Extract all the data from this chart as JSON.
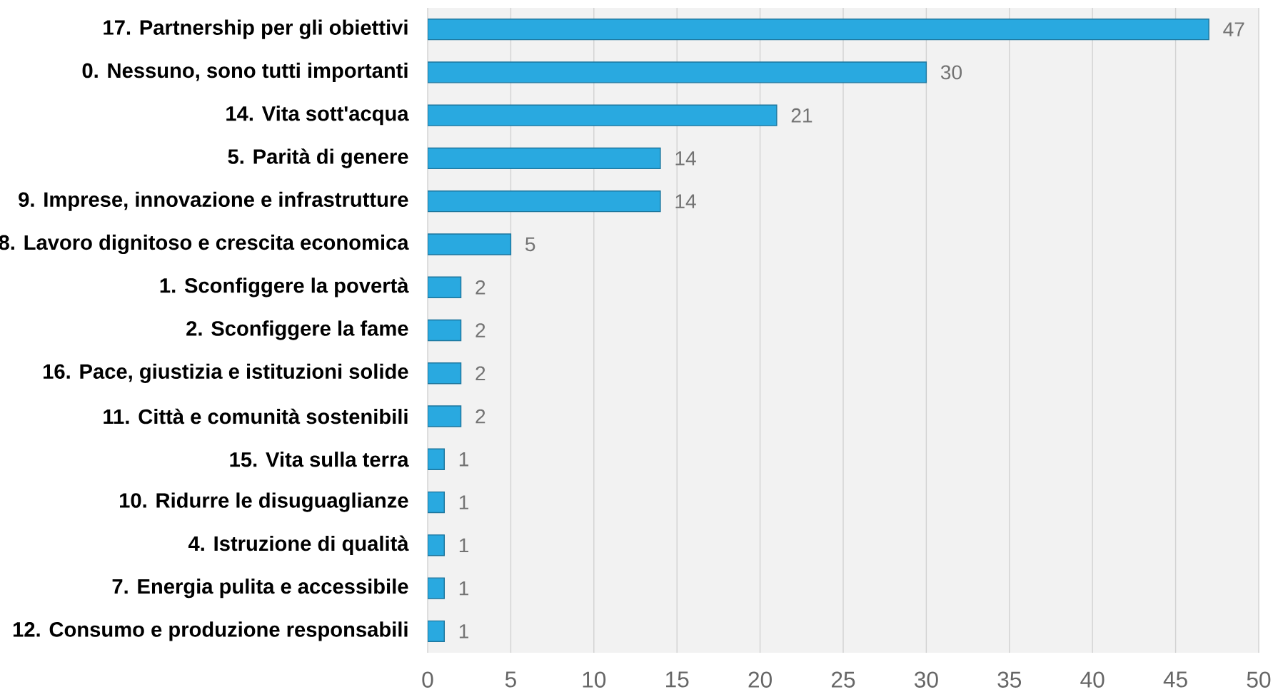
{
  "chart_data": {
    "type": "bar",
    "orientation": "horizontal",
    "categories": [
      "17. Partnership per gli obiettivi",
      "0. Nessuno, sono tutti importanti",
      "14. Vita sott'acqua",
      "5. Parità di genere",
      "9. Imprese, innovazione e infrastrutture",
      "8. Lavoro dignitoso e crescita economica",
      "1. Sconfiggere la povertà",
      "2. Sconfiggere la fame",
      "16. Pace, giustizia e istituzioni solide",
      "11. Città e comunità sostenibili",
      "15. Vita sulla terra",
      "10. Ridurre le disuguaglianze",
      "4. Istruzione di qualità",
      "7. Energia pulita e accessibile",
      "12. Consumo e produzione responsabili"
    ],
    "values": [
      47,
      30,
      21,
      14,
      14,
      5,
      2,
      2,
      2,
      2,
      1,
      1,
      1,
      1,
      1
    ],
    "color": "#29a9e0",
    "xlim": [
      0,
      50
    ],
    "xticks": [
      0,
      5,
      10,
      15,
      20,
      25,
      30,
      35,
      40,
      45,
      50
    ],
    "grid": "x",
    "data_labels": true
  }
}
